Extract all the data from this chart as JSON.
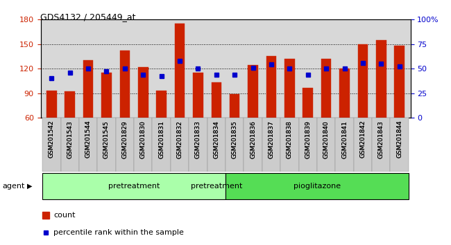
{
  "title": "GDS4132 / 205449_at",
  "samples": [
    "GSM201542",
    "GSM201543",
    "GSM201544",
    "GSM201545",
    "GSM201829",
    "GSM201830",
    "GSM201831",
    "GSM201832",
    "GSM201833",
    "GSM201834",
    "GSM201835",
    "GSM201836",
    "GSM201837",
    "GSM201838",
    "GSM201839",
    "GSM201840",
    "GSM201841",
    "GSM201842",
    "GSM201843",
    "GSM201844"
  ],
  "count_values": [
    93,
    92,
    130,
    115,
    142,
    122,
    93,
    175,
    115,
    103,
    89,
    124,
    135,
    132,
    96,
    132,
    120,
    150,
    155,
    148
  ],
  "percentile_values": [
    40,
    46,
    50,
    47,
    50,
    44,
    42,
    58,
    50,
    44,
    44,
    51,
    54,
    50,
    44,
    50,
    50,
    56,
    55,
    52
  ],
  "ylim_left": [
    60,
    180
  ],
  "ylim_right": [
    0,
    100
  ],
  "yticks_left": [
    60,
    90,
    120,
    150,
    180
  ],
  "yticks_right": [
    0,
    25,
    50,
    75,
    100
  ],
  "bar_color": "#cc2200",
  "dot_color": "#0000cc",
  "bg_color": "#d8d8d8",
  "pretreatment_color": "#aaffaa",
  "pioglitazone_color": "#55dd55",
  "legend_count_label": "count",
  "legend_percentile_label": "percentile rank within the sample",
  "agent_label": "agent",
  "bar_width": 0.55,
  "n_pretreatment": 10,
  "n_pioglitazone": 10
}
